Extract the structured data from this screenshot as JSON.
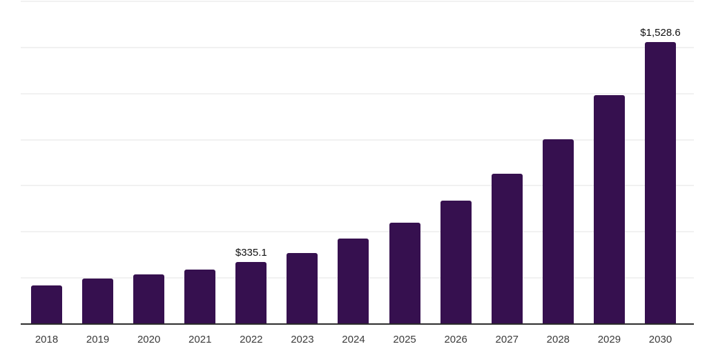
{
  "chart": {
    "background_color": "#ffffff",
    "bar_color": "#36104f",
    "axis_color": "#2b2b2b",
    "gridline_color": "#f1f1f1",
    "tick_label_color": "#3a3a3a",
    "data_label_color": "#0f0f0f"
  },
  "chart_data": {
    "type": "bar",
    "title": "",
    "xlabel": "",
    "ylabel": "",
    "categories": [
      "2018",
      "2019",
      "2020",
      "2021",
      "2022",
      "2023",
      "2024",
      "2025",
      "2026",
      "2027",
      "2028",
      "2029",
      "2030"
    ],
    "values": [
      209,
      246,
      269,
      295,
      335.1,
      385,
      463,
      549,
      668,
      814,
      1004,
      1240,
      1528.6
    ],
    "data_labels": {
      "2022": "$335.1",
      "2030": "$1,528.6"
    },
    "ylim": [
      0,
      1750
    ],
    "gridline_values": [
      250,
      500,
      750,
      1000,
      1250,
      1500,
      1750
    ],
    "grid": "horizontal-only",
    "legend": "none",
    "y_tick_labels_visible": false
  }
}
